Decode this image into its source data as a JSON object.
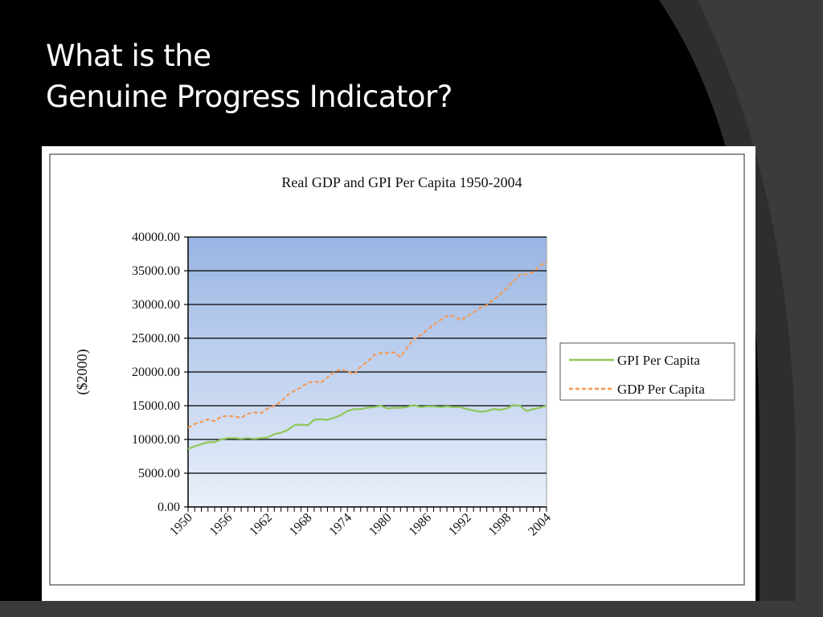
{
  "slide": {
    "title_line1": "What is the",
    "title_line2": "Genuine Progress Indicator?"
  },
  "colors": {
    "background": "#000000",
    "swoosh": "#2e2e2e",
    "plot_top": "#99b5e3",
    "plot_bottom": "#eaf0fb",
    "gpi": "#8fc75a",
    "gdp": "#f39a55"
  },
  "chart_data": {
    "type": "line",
    "title": "Real GDP and GPI Per Capita 1950-2004",
    "xlabel": "",
    "ylabel": "($2000)",
    "xlim": [
      1950,
      2004
    ],
    "ylim": [
      0,
      40000
    ],
    "grid": true,
    "legend": "right",
    "x_tick_labels": [
      "1950",
      "1956",
      "1962",
      "1968",
      "1974",
      "1980",
      "1986",
      "1992",
      "1998",
      "2004"
    ],
    "y_tick_labels": [
      "40000.00",
      "35000.00",
      "30000.00",
      "25000.00",
      "20000.00",
      "15000.00",
      "10000.00",
      "5000.00",
      "0.00"
    ],
    "x": [
      1950,
      1951,
      1952,
      1953,
      1954,
      1955,
      1956,
      1957,
      1958,
      1959,
      1960,
      1961,
      1962,
      1963,
      1964,
      1965,
      1966,
      1967,
      1968,
      1969,
      1970,
      1971,
      1972,
      1973,
      1974,
      1975,
      1976,
      1977,
      1978,
      1979,
      1980,
      1981,
      1982,
      1983,
      1984,
      1985,
      1986,
      1987,
      1988,
      1989,
      1990,
      1991,
      1992,
      1993,
      1994,
      1995,
      1996,
      1997,
      1998,
      1999,
      2000,
      2001,
      2002,
      2003,
      2004
    ],
    "series": [
      {
        "name": "GPI Per Capita",
        "style": "solid",
        "values": [
          8600,
          9000,
          9300,
          9600,
          9600,
          10000,
          10200,
          10200,
          10100,
          10200,
          10100,
          10200,
          10300,
          10800,
          11000,
          11400,
          12100,
          12200,
          12100,
          12900,
          13000,
          12900,
          13200,
          13600,
          14200,
          14500,
          14500,
          14700,
          14800,
          15000,
          14600,
          14700,
          14700,
          14800,
          15100,
          14800,
          14900,
          14900,
          14800,
          14900,
          14800,
          14800,
          14500,
          14300,
          14100,
          14200,
          14500,
          14400,
          14600,
          15100,
          15000,
          14200,
          14500,
          14700,
          15000
        ]
      },
      {
        "name": "GDP Per Capita",
        "style": "dashed",
        "values": [
          11700,
          12300,
          12600,
          13000,
          12700,
          13400,
          13500,
          13400,
          13200,
          13800,
          14000,
          13900,
          14600,
          15000,
          15600,
          16600,
          17200,
          17700,
          18400,
          18600,
          18400,
          19200,
          20000,
          20400,
          20100,
          19700,
          20800,
          21500,
          22500,
          22800,
          22800,
          22900,
          22200,
          23600,
          24900,
          25400,
          26200,
          27000,
          27700,
          28300,
          28300,
          27700,
          28200,
          28800,
          29500,
          29900,
          30700,
          31500,
          32400,
          33400,
          34400,
          34500,
          34800,
          35700,
          36300
        ]
      }
    ]
  }
}
